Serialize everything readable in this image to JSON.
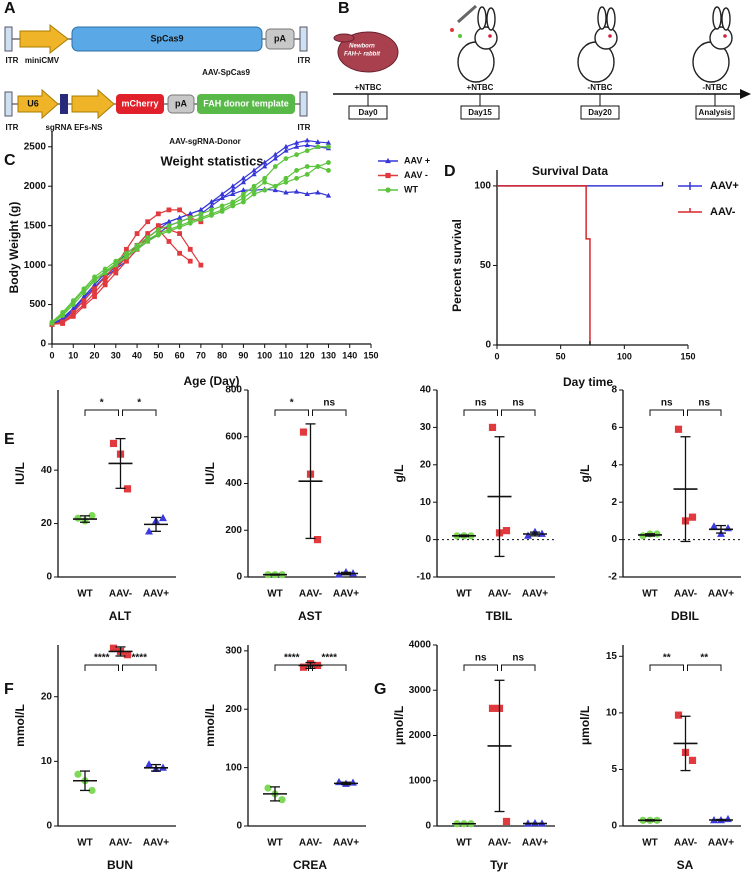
{
  "panel_labels": [
    "A",
    "B",
    "C",
    "D",
    "E",
    "F",
    "G"
  ],
  "diagram_a": {
    "construct_1": {
      "itr_left": "ITR",
      "promoter": "miniCMV",
      "gene": "SpCas9",
      "polya": "pA",
      "itr_right": "ITR",
      "name": "AAV-SpCas9"
    },
    "construct_2": {
      "itr_left": "ITR",
      "u6": "U6",
      "sgrna": "sgRNA EFs-NS",
      "reporter": "mCherry",
      "polya": "pA",
      "donor": "FAH donor template",
      "itr_right": "ITR",
      "name": "AAV-sgRNA-Donor"
    }
  },
  "timeline_b": {
    "newborn_note": [
      "Newborn",
      "FAH-/- rabbit"
    ],
    "stages": [
      {
        "treatment": "+NTBC",
        "time": "Day0"
      },
      {
        "treatment": "+NTBC",
        "time": "Day15"
      },
      {
        "treatment": "-NTBC",
        "time": "Day20"
      },
      {
        "treatment": "-NTBC",
        "time": "Analysis"
      }
    ]
  },
  "chart_data": [
    {
      "type": "line",
      "title": "Weight statistics",
      "x_label": "Age (Day)",
      "y_label": "Body Weight (g)",
      "xlim": [
        0,
        150
      ],
      "xticks": [
        0,
        10,
        20,
        30,
        40,
        50,
        60,
        70,
        80,
        90,
        100,
        110,
        120,
        130,
        140,
        150
      ],
      "ylim": [
        0,
        2700
      ],
      "yticks": [
        0,
        500,
        1000,
        1500,
        2000,
        2500
      ],
      "x": [
        0,
        5,
        10,
        15,
        20,
        25,
        30,
        35,
        40,
        45,
        50,
        55,
        60,
        65,
        70,
        75,
        80,
        85,
        90,
        95,
        100,
        105,
        110,
        115,
        120,
        125,
        130
      ],
      "series": [
        {
          "name": "AAV +",
          "color": "#3636d8",
          "marker": "triangle",
          "animals": [
            [
              250,
              330,
              450,
              600,
              750,
              900,
              1000,
              1150,
              1250,
              1400,
              1500,
              1550,
              1600,
              1650,
              1700,
              1800,
              1900,
              2000,
              2100,
              2200,
              2300,
              2400,
              2500,
              2550,
              2580,
              2560,
              2550
            ],
            [
              250,
              300,
              420,
              550,
              700,
              850,
              950,
              1050,
              1200,
              1300,
              1400,
              1500,
              1550,
              1600,
              1650,
              1750,
              1850,
              1950,
              2050,
              2150,
              2250,
              2350,
              2450,
              2500,
              2520,
              2500,
              2480
            ],
            [
              250,
              320,
              440,
              580,
              720,
              860,
              980,
              1100,
              1250,
              1350,
              1450,
              1550,
              1600,
              1650,
              1700,
              1800,
              1850,
              1900,
              1950,
              1950,
              1960,
              1950,
              1920,
              1930,
              1900,
              1920,
              1880
            ]
          ]
        },
        {
          "name": "AAV -",
          "color": "#e0393e",
          "marker": "square",
          "animals": [
            [
              250,
              280,
              400,
              550,
              700,
              850,
              1000,
              1200,
              1400,
              1550,
              1650,
              1700,
              1700,
              1600,
              1550,
              null,
              null,
              null,
              null,
              null,
              null,
              null,
              null,
              null,
              null,
              null,
              null
            ],
            [
              250,
              260,
              380,
              500,
              650,
              800,
              950,
              1100,
              1250,
              1400,
              1500,
              1450,
              1400,
              1200,
              1000,
              null,
              null,
              null,
              null,
              null,
              null,
              null,
              null,
              null,
              null,
              null,
              null
            ],
            [
              250,
              270,
              350,
              480,
              600,
              750,
              900,
              1050,
              1200,
              1350,
              1450,
              1300,
              1150,
              1050,
              null,
              null,
              null,
              null,
              null,
              null,
              null,
              null,
              null,
              null,
              null,
              null,
              null
            ]
          ]
        },
        {
          "name": "WT",
          "color": "#5cc43c",
          "marker": "circle",
          "animals": [
            [
              280,
              400,
              550,
              700,
              850,
              950,
              1050,
              1150,
              1250,
              1350,
              1450,
              1500,
              1550,
              1600,
              1650,
              1700,
              1750,
              1800,
              1900,
              2000,
              2100,
              2250,
              2350,
              2400,
              2450,
              2500,
              2500
            ],
            [
              270,
              380,
              530,
              680,
              820,
              920,
              1020,
              1120,
              1220,
              1320,
              1400,
              1450,
              1500,
              1550,
              1600,
              1650,
              1700,
              1780,
              1850,
              1950,
              2050,
              2000,
              2050,
              2100,
              2150,
              2250,
              2300
            ],
            [
              260,
              360,
              500,
              650,
              800,
              900,
              1000,
              1100,
              1200,
              1300,
              1380,
              1430,
              1480,
              1530,
              1580,
              1630,
              1680,
              1750,
              1800,
              1900,
              1950,
              2000,
              2100,
              2200,
              2250,
              2250,
              2200
            ]
          ]
        }
      ]
    },
    {
      "type": "survival",
      "title": "Survival Data",
      "x_label": "Day time",
      "y_label": "Percent survival",
      "xlim": [
        0,
        150
      ],
      "xticks": [
        0,
        50,
        100,
        150
      ],
      "ylim": [
        0,
        110
      ],
      "yticks": [
        0,
        50,
        100
      ],
      "series": [
        {
          "name": "AAV+",
          "color": "#3636d8",
          "x": [
            0,
            130
          ],
          "values": [
            100,
            100
          ]
        },
        {
          "name": "AAV-",
          "color": "#d8262c",
          "x": [
            0,
            70,
            73
          ],
          "values": [
            100,
            66.7,
            0
          ]
        }
      ]
    },
    {
      "type": "dot",
      "title": "ALT",
      "y_label": "IU/L",
      "categories": [
        "WT",
        "AAV-",
        "AAV+"
      ],
      "colors": [
        "#7ed957",
        "#e0393e",
        "#3a3ae0"
      ],
      "markers": [
        "circle",
        "square",
        "triangle"
      ],
      "ylim": [
        0,
        70
      ],
      "yticks": [
        0,
        20,
        40
      ],
      "points": [
        [
          22,
          21,
          23
        ],
        [
          50,
          46,
          33
        ],
        [
          17,
          21,
          22
        ]
      ],
      "means": [
        21.7,
        42.5,
        19.7
      ],
      "sd": [
        1.2,
        9.3,
        2.6
      ],
      "significance": [
        "*",
        "*"
      ],
      "zero_line": false
    },
    {
      "type": "dot",
      "title": "AST",
      "y_label": "IU/L",
      "categories": [
        "WT",
        "AAV-",
        "AAV+"
      ],
      "colors": [
        "#7ed957",
        "#e0393e",
        "#3a3ae0"
      ],
      "markers": [
        "circle",
        "square",
        "triangle"
      ],
      "ylim": [
        0,
        800
      ],
      "yticks": [
        0,
        200,
        400,
        600,
        800
      ],
      "points": [
        [
          10,
          10,
          10
        ],
        [
          620,
          440,
          160
        ],
        [
          10,
          20,
          15
        ]
      ],
      "means": [
        10,
        410,
        15
      ],
      "sd": [
        2,
        245,
        5
      ],
      "significance": [
        "*",
        "ns"
      ],
      "zero_line": false
    },
    {
      "type": "dot",
      "title": "TBIL",
      "y_label": "g/L",
      "categories": [
        "WT",
        "AAV-",
        "AAV+"
      ],
      "colors": [
        "#7ed957",
        "#e0393e",
        "#3a3ae0"
      ],
      "markers": [
        "circle",
        "square",
        "triangle"
      ],
      "ylim": [
        -10,
        40
      ],
      "yticks": [
        -10,
        0,
        10,
        20,
        30,
        40
      ],
      "points": [
        [
          1,
          1,
          1
        ],
        [
          30,
          1.8,
          2.4
        ],
        [
          1,
          2,
          1.5
        ]
      ],
      "means": [
        1,
        11.5,
        1.5
      ],
      "sd": [
        0.2,
        16,
        0.5
      ],
      "significance": [
        "ns",
        "ns"
      ],
      "zero_line": true
    },
    {
      "type": "dot",
      "title": "DBIL",
      "y_label": "g/L",
      "categories": [
        "WT",
        "AAV-",
        "AAV+"
      ],
      "colors": [
        "#7ed957",
        "#e0393e",
        "#3a3ae0"
      ],
      "markers": [
        "circle",
        "square",
        "triangle"
      ],
      "ylim": [
        -2,
        8
      ],
      "yticks": [
        -2,
        0,
        2,
        4,
        6,
        8
      ],
      "points": [
        [
          0.2,
          0.3,
          0.3
        ],
        [
          5.9,
          1.0,
          1.2
        ],
        [
          0.7,
          0.3,
          0.6
        ]
      ],
      "means": [
        0.25,
        2.7,
        0.55
      ],
      "sd": [
        0.06,
        2.8,
        0.2
      ],
      "significance": [
        "ns",
        "ns"
      ],
      "zero_line": true
    },
    {
      "type": "dot",
      "title": "BUN",
      "y_label": "mmol/L",
      "categories": [
        "WT",
        "AAV-",
        "AAV+"
      ],
      "colors": [
        "#7ed957",
        "#e0393e",
        "#3a3ae0"
      ],
      "markers": [
        "circle",
        "square",
        "triangle"
      ],
      "ylim": [
        0,
        28
      ],
      "yticks": [
        0,
        10,
        20
      ],
      "points": [
        [
          8,
          7,
          5.5
        ],
        [
          27.5,
          27,
          26.5
        ],
        [
          9.5,
          8.8,
          9
        ]
      ],
      "means": [
        7,
        27,
        9
      ],
      "sd": [
        1.5,
        0.7,
        0.5
      ],
      "significance": [
        "****",
        "****"
      ],
      "zero_line": false
    },
    {
      "type": "dot",
      "title": "CREA",
      "y_label": "mmol/L",
      "categories": [
        "WT",
        "AAV-",
        "AAV+"
      ],
      "colors": [
        "#7ed957",
        "#e0393e",
        "#3a3ae0"
      ],
      "markers": [
        "circle",
        "square",
        "triangle"
      ],
      "ylim": [
        0,
        310
      ],
      "yticks": [
        0,
        100,
        200,
        300
      ],
      "points": [
        [
          65,
          55,
          45
        ],
        [
          272,
          278,
          275
        ],
        [
          75,
          72,
          74
        ]
      ],
      "means": [
        55,
        275,
        73
      ],
      "sd": [
        12,
        5,
        2
      ],
      "significance": [
        "****",
        "****"
      ],
      "zero_line": false
    },
    {
      "type": "dot",
      "title": "Tyr",
      "y_label": "μmol/L",
      "categories": [
        "WT",
        "AAV-",
        "AAV+"
      ],
      "colors": [
        "#7ed957",
        "#e0393e",
        "#3a3ae0"
      ],
      "markers": [
        "circle",
        "square",
        "triangle"
      ],
      "ylim": [
        0,
        4000
      ],
      "yticks": [
        0,
        1000,
        2000,
        3000,
        4000
      ],
      "points": [
        [
          50,
          50,
          50
        ],
        [
          2600,
          2600,
          100
        ],
        [
          50,
          60,
          50
        ]
      ],
      "means": [
        50,
        1770,
        53
      ],
      "sd": [
        5,
        1450,
        6
      ],
      "significance": [
        "ns",
        "ns"
      ],
      "zero_line": false
    },
    {
      "type": "dot",
      "title": "SA",
      "y_label": "μmol/L",
      "categories": [
        "WT",
        "AAV-",
        "AAV+"
      ],
      "colors": [
        "#7ed957",
        "#e0393e",
        "#3a3ae0"
      ],
      "markers": [
        "circle",
        "square",
        "triangle"
      ],
      "ylim": [
        0,
        16
      ],
      "yticks": [
        0,
        5,
        10,
        15
      ],
      "points": [
        [
          0.5,
          0.5,
          0.5
        ],
        [
          9.8,
          6.5,
          5.8
        ],
        [
          0.5,
          0.5,
          0.6
        ]
      ],
      "means": [
        0.5,
        7.3,
        0.53
      ],
      "sd": [
        0.05,
        2.4,
        0.05
      ],
      "significance": [
        "**",
        "**"
      ],
      "zero_line": false
    }
  ]
}
